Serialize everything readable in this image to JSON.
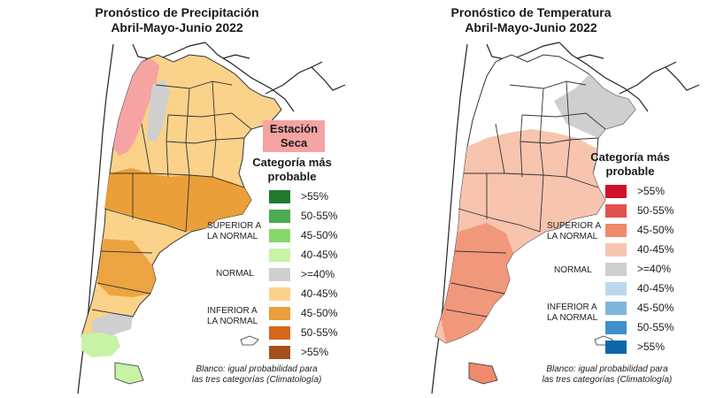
{
  "precipitation": {
    "title_line1": "Pronóstico de Precipitación",
    "title_line2": "Abril-Mayo-Junio 2022",
    "dry_label_line1": "Estación",
    "dry_label_line2": "Seca",
    "legend_title_line1": "Categoría más",
    "legend_title_line2": "probable",
    "group_superior_line1": "SUPERIOR A",
    "group_superior_line2": "LA NORMAL",
    "group_normal": "NORMAL",
    "group_inferior_line1": "INFERIOR A",
    "group_inferior_line2": "LA NORMAL",
    "categories": [
      {
        "label": ">55%",
        "color": "#1e7b2e"
      },
      {
        "label": "50-55%",
        "color": "#4caa4f"
      },
      {
        "label": "45-50%",
        "color": "#86d86a"
      },
      {
        "label": "40-45%",
        "color": "#c8f2a6"
      },
      {
        "label": ">=40%",
        "color": "#cfcfcf"
      },
      {
        "label": "40-45%",
        "color": "#fbd28a"
      },
      {
        "label": "45-50%",
        "color": "#ea9f38"
      },
      {
        "label": "50-55%",
        "color": "#d7661a"
      },
      {
        "label": ">55%",
        "color": "#a5501a"
      }
    ],
    "note_line1": "Blanco: igual probabilidad para",
    "note_line2": "las tres categorías (Climatología)"
  },
  "temperature": {
    "title_line1": "Pronóstico de Temperatura",
    "title_line2": "Abril-Mayo-Junio 2022",
    "legend_title_line1": "Categoría más",
    "legend_title_line2": "probable",
    "group_superior_line1": "SUPERIOR A",
    "group_superior_line2": "LA NORMAL",
    "group_normal": "NORMAL",
    "group_inferior_line1": "INFERIOR A",
    "group_inferior_line2": "LA NORMAL",
    "categories": [
      {
        "label": ">55%",
        "color": "#d1102a"
      },
      {
        "label": "50-55%",
        "color": "#e2514f"
      },
      {
        "label": "45-50%",
        "color": "#ef8a6b"
      },
      {
        "label": "40-45%",
        "color": "#f7c4ae"
      },
      {
        "label": ">=40%",
        "color": "#cfcfcf"
      },
      {
        "label": "40-45%",
        "color": "#bcd9ec"
      },
      {
        "label": "45-50%",
        "color": "#7fb6de"
      },
      {
        "label": "50-55%",
        "color": "#3f8fcb"
      },
      {
        "label": ">55%",
        "color": "#0c67a8"
      }
    ],
    "note_line1": "Blanco: igual probabilidad para",
    "note_line2": "las tres categorías (Climatología)"
  }
}
